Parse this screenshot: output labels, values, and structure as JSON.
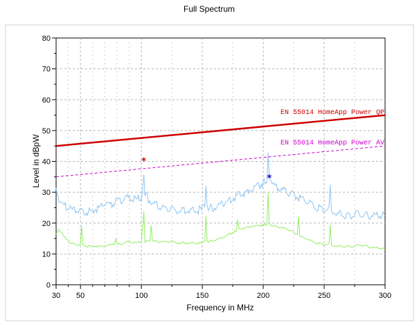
{
  "chart_data": {
    "type": "line",
    "title": "Full Spectrum",
    "xlabel": "Frequency in MHz",
    "ylabel": "Level in dBpW",
    "xlim": [
      30,
      300
    ],
    "ylim": [
      0,
      80
    ],
    "x_ticks": [
      30,
      50,
      100,
      150,
      200,
      250,
      300
    ],
    "y_ticks": [
      0,
      10,
      20,
      30,
      40,
      50,
      60,
      70,
      80
    ],
    "grid": true,
    "colors": {
      "qp_limit": "#cc0000",
      "av_limit": "#cc00cc",
      "peak_trace": "#8ec4f0",
      "average_trace": "#90ee60",
      "marker_red": "#cc0000",
      "marker_blue": "#0000cc"
    },
    "series": [
      {
        "name": "EN 55014 HomeApp Power QP",
        "style": "solid-thick",
        "color": "#cc0000",
        "x": [
          30,
          300
        ],
        "y": [
          45,
          55
        ]
      },
      {
        "name": "EN 55014 HomeApp Power AV",
        "style": "dashed",
        "color": "#cc00cc",
        "x": [
          30,
          300
        ],
        "y": [
          35,
          45
        ]
      },
      {
        "name": "",
        "color": "#8ec4f0",
        "x": [
          30,
          35,
          40,
          45,
          50,
          55,
          60,
          65,
          70,
          75,
          80,
          85,
          90,
          95,
          100,
          101,
          102,
          103,
          105,
          110,
          115,
          120,
          125,
          130,
          135,
          140,
          145,
          150,
          152,
          153,
          154,
          156,
          160,
          165,
          170,
          175,
          180,
          185,
          190,
          195,
          200,
          203,
          204,
          205,
          207,
          210,
          215,
          220,
          225,
          230,
          235,
          240,
          245,
          250,
          254,
          255,
          256,
          258,
          260,
          265,
          270,
          275,
          280,
          285,
          290,
          295,
          300
        ],
        "y": [
          30,
          26,
          25,
          24,
          24,
          23.5,
          24,
          25,
          26.5,
          26,
          27,
          28,
          28,
          27.5,
          28,
          31,
          37,
          30,
          28,
          26,
          25.5,
          25,
          24.5,
          24,
          24,
          24,
          24,
          24.5,
          25,
          31,
          25,
          25,
          25,
          26,
          27,
          28,
          29,
          30,
          31,
          32,
          33,
          34,
          43,
          35,
          33,
          32,
          31,
          30,
          29,
          28,
          27,
          26,
          25,
          24,
          24,
          31,
          23,
          23,
          23,
          23,
          22.5,
          23,
          23,
          22.5,
          22.5,
          22.5,
          22.5
        ]
      },
      {
        "name": "",
        "color": "#90ee60",
        "x": [
          30,
          32,
          35,
          38,
          42,
          46,
          50,
          51,
          52,
          55,
          60,
          65,
          70,
          75,
          78,
          79,
          80,
          85,
          90,
          95,
          100,
          101,
          102,
          103,
          105,
          107,
          108,
          109,
          110,
          115,
          120,
          125,
          130,
          135,
          140,
          145,
          150,
          152,
          153,
          154,
          156,
          160,
          165,
          170,
          175,
          178,
          179,
          180,
          185,
          190,
          195,
          200,
          203,
          204,
          205,
          207,
          210,
          215,
          220,
          225,
          228,
          229,
          230,
          235,
          240,
          245,
          250,
          254,
          255,
          256,
          258,
          260,
          265,
          270,
          275,
          280,
          285,
          290,
          295,
          300
        ],
        "y": [
          16,
          18,
          16.5,
          15,
          13.5,
          13,
          13,
          19,
          13,
          12.5,
          12.5,
          12.5,
          12.5,
          13,
          13,
          15,
          13,
          13.5,
          14,
          13.5,
          14,
          18.5,
          24,
          14,
          14,
          14,
          19,
          14,
          14,
          14,
          14,
          14,
          13.5,
          13.5,
          13.5,
          13.5,
          13.5,
          14,
          22,
          14,
          14,
          14.5,
          15,
          16,
          17,
          17.5,
          21,
          18,
          18.5,
          19,
          19,
          19.5,
          19.5,
          30,
          20,
          19,
          19,
          18.5,
          18,
          17,
          16,
          22,
          15.5,
          15,
          14,
          13.5,
          13,
          13,
          19,
          12.5,
          12.5,
          12.5,
          12.5,
          12.5,
          12.5,
          13,
          12.5,
          12,
          12,
          11.5
        ]
      }
    ],
    "markers": [
      {
        "x": 102,
        "y": 40.5,
        "color": "#cc0000",
        "symbol": "*"
      },
      {
        "x": 205,
        "y": 35,
        "color": "#0000cc",
        "symbol": "*"
      }
    ]
  }
}
